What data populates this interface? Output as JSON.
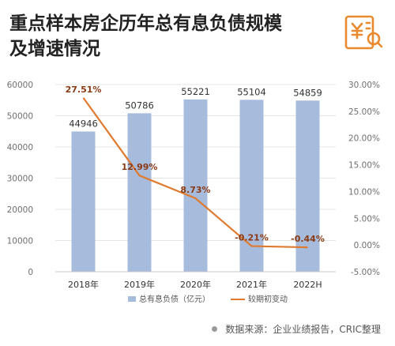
{
  "title_lines": [
    "重点样本房企历年总有息负债规模",
    "及增速情况"
  ],
  "logo": {
    "icon": "yuan-document-icon",
    "color": "#e98a2f"
  },
  "source": "数据来源：企业业绩报告，CRIC整理",
  "chart_data": {
    "type": "bar+line",
    "categories": [
      "2018年",
      "2019年",
      "2020年",
      "2021年",
      "2022H"
    ],
    "series": [
      {
        "name": "总有息负债（亿元）",
        "type": "bar",
        "axis": "left",
        "color": "#a7bcdc",
        "values": [
          44946,
          50786,
          55221,
          55104,
          54859
        ],
        "labels": [
          "44946",
          "50786",
          "55221",
          "55104",
          "54859"
        ]
      },
      {
        "name": "较期初变动",
        "type": "line",
        "axis": "right",
        "color": "#e07a2f",
        "values": [
          27.51,
          12.99,
          8.73,
          -0.21,
          -0.44
        ],
        "labels": [
          "27.51%",
          "12.99%",
          "8.73%",
          "-0.21%",
          "-0.44%"
        ]
      }
    ],
    "y_left": {
      "min": 0,
      "max": 60000,
      "step": 10000,
      "ticks": [
        "0",
        "10000",
        "20000",
        "30000",
        "40000",
        "50000",
        "60000"
      ]
    },
    "y_right": {
      "min": -5,
      "max": 30,
      "step": 5,
      "ticks": [
        "-5.00%",
        "0.00%",
        "5.00%",
        "10.00%",
        "15.00%",
        "20.00%",
        "25.00%",
        "30.00%"
      ]
    },
    "legend": "bottom",
    "grid": true
  }
}
